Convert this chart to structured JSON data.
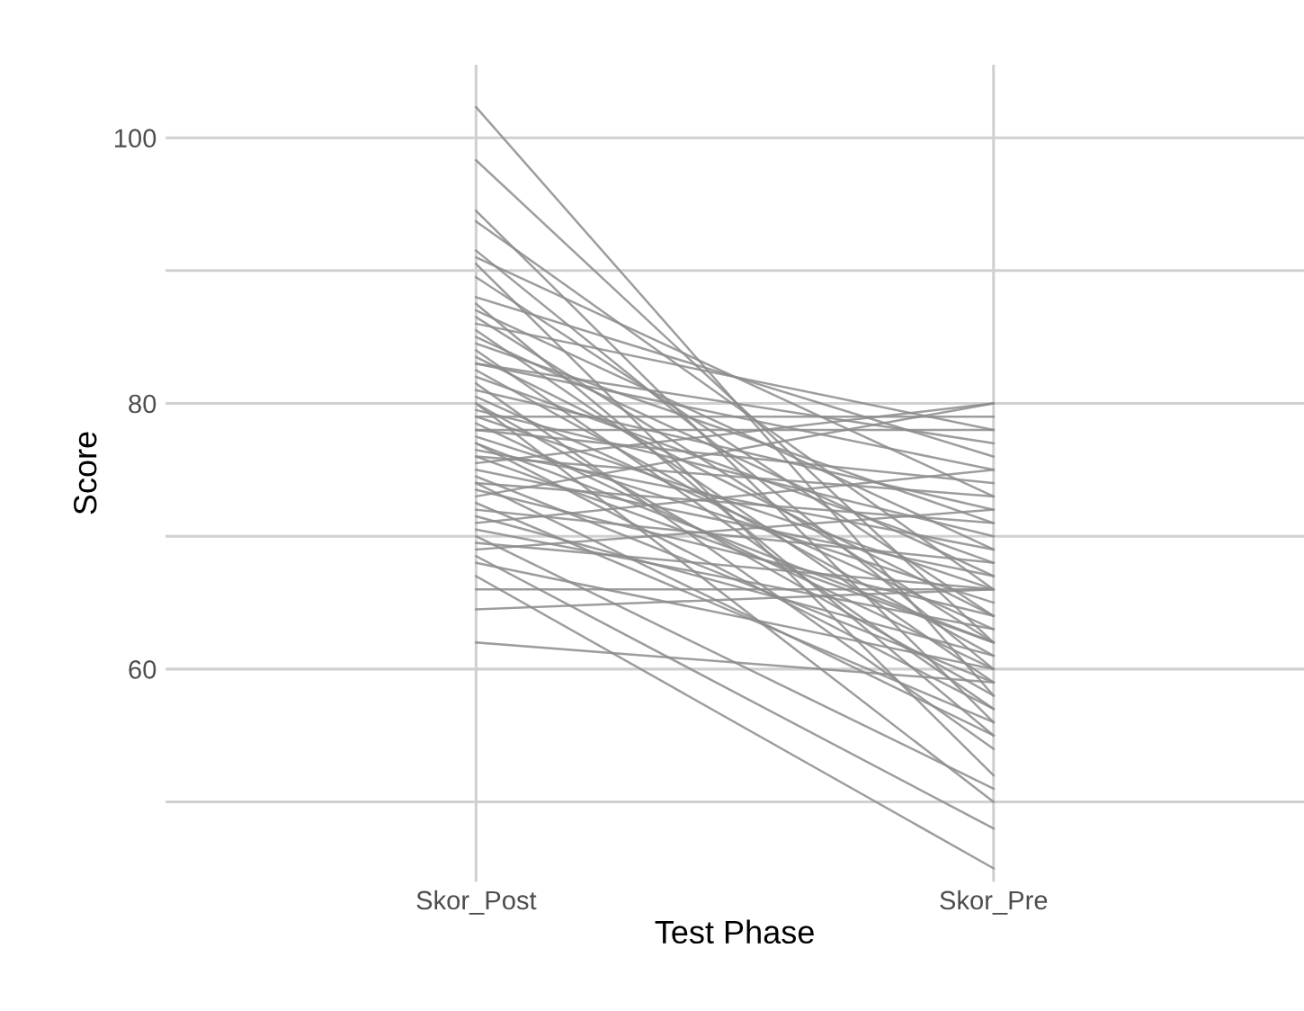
{
  "chart_data": {
    "type": "line",
    "xlabel": "Test Phase",
    "ylabel": "Score",
    "categories": [
      "Skor_Post",
      "Skor_Pre"
    ],
    "ylim": [
      44,
      105.5
    ],
    "yticks": [
      {
        "value": 50,
        "label": null
      },
      60,
      {
        "value": 70,
        "label": null
      },
      80,
      {
        "value": 90,
        "label": null
      },
      100
    ],
    "grid": true,
    "legend": false,
    "marker": "none",
    "line_style": "solid",
    "series": [
      {
        "color": "#8c8c8c",
        "values": [
          102.3,
          58
        ]
      },
      {
        "color": "#8c8c8c",
        "values": [
          98.3,
          62
        ]
      },
      {
        "color": "#8c8c8c",
        "values": [
          94.5,
          56
        ]
      },
      {
        "color": "#8c8c8c",
        "values": [
          93.7,
          66
        ]
      },
      {
        "color": "#8c8c8c",
        "values": [
          91.5,
          60
        ]
      },
      {
        "color": "#8c8c8c",
        "values": [
          91,
          73
        ]
      },
      {
        "color": "#8c8c8c",
        "values": [
          90.5,
          52
        ]
      },
      {
        "color": "#8c8c8c",
        "values": [
          89.5,
          64
        ]
      },
      {
        "color": "#8c8c8c",
        "values": [
          88,
          76
        ]
      },
      {
        "color": "#8c8c8c",
        "values": [
          87.5,
          55
        ]
      },
      {
        "color": "#8c8c8c",
        "values": [
          87,
          69
        ]
      },
      {
        "color": "#8c8c8c",
        "values": [
          86.5,
          62
        ]
      },
      {
        "color": "#8c8c8c",
        "values": [
          86,
          78
        ]
      },
      {
        "color": "#8c8c8c",
        "values": [
          85.5,
          59
        ]
      },
      {
        "color": "#8c8c8c",
        "values": [
          85,
          67
        ]
      },
      {
        "color": "#8c8c8c",
        "values": [
          84.5,
          71
        ]
      },
      {
        "color": "#8c8c8c",
        "values": [
          84,
          57
        ]
      },
      {
        "color": "#8c8c8c",
        "values": [
          83.5,
          64
        ]
      },
      {
        "color": "#8c8c8c",
        "values": [
          83,
          75
        ]
      },
      {
        "color": "#8c8c8c",
        "values": [
          82.5,
          61
        ]
      },
      {
        "color": "#8c8c8c",
        "values": [
          82,
          68
        ]
      },
      {
        "color": "#8c8c8c",
        "values": [
          81.5,
          54
        ]
      },
      {
        "color": "#8c8c8c",
        "values": [
          81,
          72
        ]
      },
      {
        "color": "#8c8c8c",
        "values": [
          80.5,
          63
        ]
      },
      {
        "color": "#8c8c8c",
        "values": [
          80,
          58
        ]
      },
      {
        "color": "#8c8c8c",
        "values": [
          79.5,
          70
        ]
      },
      {
        "color": "#8c8c8c",
        "values": [
          79,
          66
        ]
      },
      {
        "color": "#8c8c8c",
        "values": [
          78.5,
          60
        ]
      },
      {
        "color": "#8c8c8c",
        "values": [
          78,
          78
        ]
      },
      {
        "color": "#8c8c8c",
        "values": [
          78,
          74
        ]
      },
      {
        "color": "#8c8c8c",
        "values": [
          77.5,
          65
        ]
      },
      {
        "color": "#8c8c8c",
        "values": [
          77,
          57
        ]
      },
      {
        "color": "#8c8c8c",
        "values": [
          76.5,
          69
        ]
      },
      {
        "color": "#8c8c8c",
        "values": [
          76,
          62
        ]
      },
      {
        "color": "#8c8c8c",
        "values": [
          75.5,
          80
        ]
      },
      {
        "color": "#8c8c8c",
        "values": [
          75,
          67
        ]
      },
      {
        "color": "#8c8c8c",
        "values": [
          74.5,
          59
        ]
      },
      {
        "color": "#8c8c8c",
        "values": [
          74,
          71
        ]
      },
      {
        "color": "#8c8c8c",
        "values": [
          73.5,
          64
        ]
      },
      {
        "color": "#8c8c8c",
        "values": [
          73,
          80
        ]
      },
      {
        "color": "#8c8c8c",
        "values": [
          72.5,
          56
        ]
      },
      {
        "color": "#8c8c8c",
        "values": [
          72,
          68
        ]
      },
      {
        "color": "#8c8c8c",
        "values": [
          71.5,
          61
        ]
      },
      {
        "color": "#8c8c8c",
        "values": [
          71,
          75
        ]
      },
      {
        "color": "#8c8c8c",
        "values": [
          70.5,
          63
        ]
      },
      {
        "color": "#8c8c8c",
        "values": [
          70,
          51
        ]
      },
      {
        "color": "#8c8c8c",
        "values": [
          69.5,
          66
        ]
      },
      {
        "color": "#8c8c8c",
        "values": [
          69,
          72
        ]
      },
      {
        "color": "#8c8c8c",
        "values": [
          68.5,
          48
        ]
      },
      {
        "color": "#8c8c8c",
        "values": [
          68,
          60
        ]
      },
      {
        "color": "#8c8c8c",
        "values": [
          67,
          45
        ]
      },
      {
        "color": "#8c8c8c",
        "values": [
          66,
          66
        ]
      },
      {
        "color": "#8c8c8c",
        "values": [
          64.5,
          66
        ]
      },
      {
        "color": "#8c8c8c",
        "values": [
          62,
          59
        ]
      },
      {
        "color": "#8c8c8c",
        "values": [
          80,
          50
        ]
      },
      {
        "color": "#8c8c8c",
        "values": [
          83,
          77
        ]
      },
      {
        "color": "#8c8c8c",
        "values": [
          79,
          79
        ]
      },
      {
        "color": "#8c8c8c",
        "values": [
          76,
          73
        ]
      },
      {
        "color": "#8c8c8c",
        "values": [
          74,
          55
        ]
      },
      {
        "color": "#8c8c8c",
        "values": [
          77,
          62
        ]
      }
    ]
  }
}
